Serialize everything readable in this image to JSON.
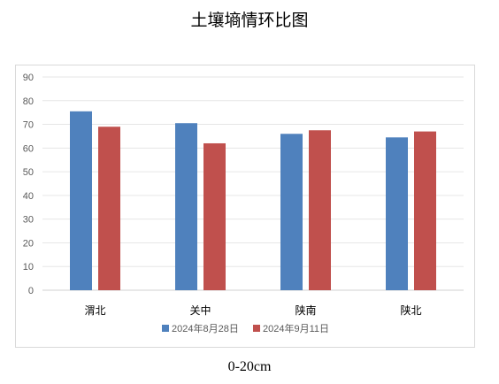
{
  "page": {
    "title": "土壤墒情环比图",
    "caption": "0-20cm"
  },
  "colors": {
    "series1": "#4f81bd",
    "series2": "#c0504d",
    "grid": "#e6e6e6",
    "axis": "#d0d0d0",
    "tick_text": "#595959"
  },
  "chart_data": {
    "type": "bar",
    "title": "土壤墒情环比图",
    "xlabel": "",
    "ylabel": "",
    "categories": [
      "渭北",
      "关中",
      "陕南",
      "陕北"
    ],
    "series": [
      {
        "name": "2024年8月28日",
        "values": [
          75.5,
          70.5,
          66,
          64.5
        ]
      },
      {
        "name": "2024年9月11日",
        "values": [
          69,
          62,
          67.5,
          67
        ]
      }
    ],
    "ylim": [
      0,
      90
    ],
    "yticks": [
      0,
      10,
      20,
      30,
      40,
      50,
      60,
      70,
      80,
      90
    ],
    "grid": true,
    "legend_position": "bottom"
  }
}
